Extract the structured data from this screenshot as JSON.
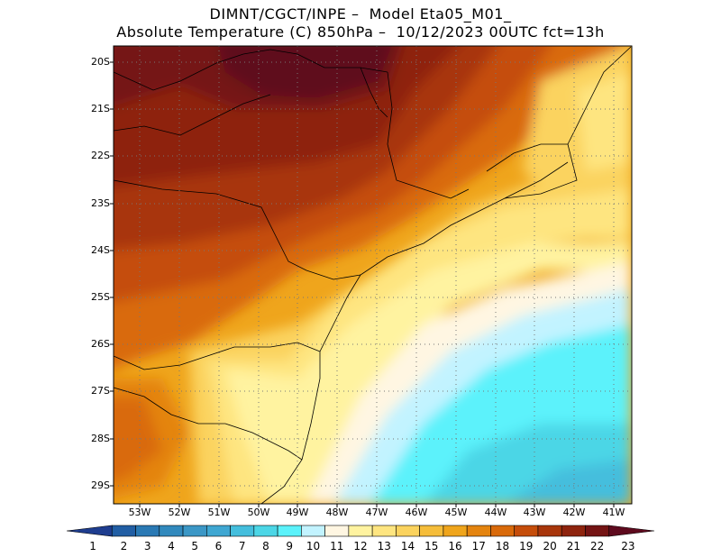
{
  "header": {
    "line1": "DIMNT/CGCT/INPE –  Model Eta05_M01_",
    "line2": "Absolute Temperature (C) 850hPa –  10/12/2023 00UTC fct=13h"
  },
  "map": {
    "lat_labels": [
      "20S",
      "21S",
      "22S",
      "23S",
      "24S",
      "25S",
      "26S",
      "27S",
      "28S",
      "29S"
    ],
    "lon_labels": [
      "53W",
      "52W",
      "51W",
      "50W",
      "49W",
      "48W",
      "47W",
      "46W",
      "45W",
      "44W",
      "43W",
      "42W",
      "41W"
    ],
    "grid": "dotted"
  },
  "colorbar": {
    "labels": [
      "1",
      "2",
      "3",
      "4",
      "5",
      "6",
      "7",
      "8",
      "9",
      "10",
      "11",
      "12",
      "13",
      "14",
      "15",
      "16",
      "17",
      "18",
      "19",
      "20",
      "21",
      "22",
      "23"
    ],
    "colors": [
      "#1e3d8f",
      "#215ea4",
      "#2a79b4",
      "#3189bd",
      "#3b97c6",
      "#3fa7d2",
      "#44bedd",
      "#4cd6e6",
      "#5bf2fb",
      "#c2f3ff",
      "#fff6e2",
      "#fff3a0",
      "#fee580",
      "#fbd35e",
      "#f5bd3a",
      "#efa51c",
      "#e4840f",
      "#d96a0a",
      "#c54d0a",
      "#a8360b",
      "#8e240e",
      "#741414",
      "#5e0a1e"
    ]
  }
}
